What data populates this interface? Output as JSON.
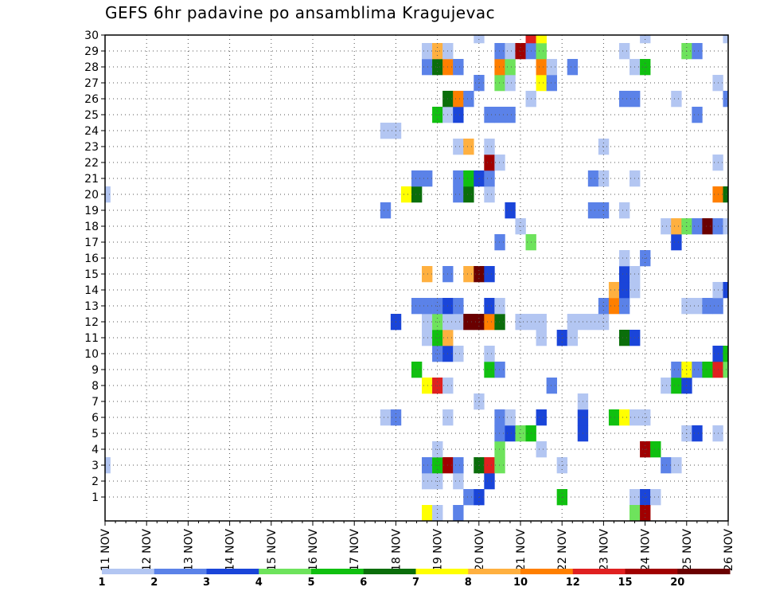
{
  "chart_data": {
    "type": "heatmap",
    "title": "GEFS 6hr padavine po ansamblima Kragujevac",
    "y_ticks": [
      1,
      2,
      3,
      4,
      5,
      6,
      7,
      8,
      9,
      10,
      11,
      12,
      13,
      14,
      15,
      16,
      17,
      18,
      19,
      20,
      21,
      22,
      23,
      24,
      25,
      26,
      27,
      28,
      29,
      30
    ],
    "x_ticks": [
      "11 NOV",
      "12 NOV",
      "13 NOV",
      "14 NOV",
      "15 NOV",
      "16 NOV",
      "17 NOV",
      "18 NOV",
      "19 NOV",
      "20 NOV",
      "21 NOV",
      "22 NOV",
      "23 NOV",
      "24 NOV",
      "25 NOV",
      "26 NOV"
    ],
    "legend": {
      "labels": [
        "1",
        "2",
        "3",
        "4",
        "5",
        "6",
        "7",
        "8",
        "10",
        "12",
        "15",
        "20"
      ],
      "colors": [
        "#b3c6f2",
        "#5b82e8",
        "#1a45d9",
        "#6ee35c",
        "#10c010",
        "#0b6e0b",
        "#ffff00",
        "#ffb040",
        "#ff7f00",
        "#e02020",
        "#a00000",
        "#6a0000"
      ]
    },
    "grid": true,
    "cells": [
      {
        "member": 1,
        "day": 19.75,
        "c": 2
      },
      {
        "member": 1,
        "day": 20.0,
        "c": 3
      },
      {
        "member": 1,
        "day": 22.0,
        "c": 5
      },
      {
        "member": 1,
        "day": 23.75,
        "c": 1
      },
      {
        "member": 1,
        "day": 24.0,
        "c": 3
      },
      {
        "member": 1,
        "day": 24.25,
        "c": 1
      },
      {
        "member": 2,
        "day": 18.75,
        "c": 1
      },
      {
        "member": 2,
        "day": 19.0,
        "c": 1
      },
      {
        "member": 2,
        "day": 19.5,
        "c": 1
      },
      {
        "member": 2,
        "day": 20.25,
        "c": 3
      },
      {
        "member": 3,
        "day": 11.0,
        "c": 1
      },
      {
        "member": 3,
        "day": 18.75,
        "c": 2
      },
      {
        "member": 3,
        "day": 19.0,
        "c": 5
      },
      {
        "member": 3,
        "day": 19.25,
        "c": 11
      },
      {
        "member": 3,
        "day": 19.5,
        "c": 2
      },
      {
        "member": 3,
        "day": 20.0,
        "c": 6
      },
      {
        "member": 3,
        "day": 20.25,
        "c": 10
      },
      {
        "member": 3,
        "day": 20.5,
        "c": 4
      },
      {
        "member": 3,
        "day": 22.0,
        "c": 1
      },
      {
        "member": 3,
        "day": 24.5,
        "c": 2
      },
      {
        "member": 3,
        "day": 24.75,
        "c": 1
      },
      {
        "member": 4,
        "day": 19.0,
        "c": 1
      },
      {
        "member": 4,
        "day": 20.5,
        "c": 4
      },
      {
        "member": 4,
        "day": 21.5,
        "c": 1
      },
      {
        "member": 4,
        "day": 24.0,
        "c": 11
      },
      {
        "member": 4,
        "day": 24.25,
        "c": 5
      },
      {
        "member": 5,
        "day": 20.5,
        "c": 2
      },
      {
        "member": 5,
        "day": 20.75,
        "c": 3
      },
      {
        "member": 5,
        "day": 21.0,
        "c": 4
      },
      {
        "member": 5,
        "day": 21.25,
        "c": 5
      },
      {
        "member": 5,
        "day": 22.5,
        "c": 3
      },
      {
        "member": 5,
        "day": 25.0,
        "c": 1
      },
      {
        "member": 5,
        "day": 25.25,
        "c": 3
      },
      {
        "member": 5,
        "day": 25.75,
        "c": 1
      },
      {
        "member": 6,
        "day": 17.75,
        "c": 1
      },
      {
        "member": 6,
        "day": 18.0,
        "c": 2
      },
      {
        "member": 6,
        "day": 19.25,
        "c": 1
      },
      {
        "member": 6,
        "day": 20.5,
        "c": 2
      },
      {
        "member": 6,
        "day": 20.75,
        "c": 1
      },
      {
        "member": 6,
        "day": 21.5,
        "c": 3
      },
      {
        "member": 6,
        "day": 22.5,
        "c": 3
      },
      {
        "member": 6,
        "day": 23.25,
        "c": 5
      },
      {
        "member": 6,
        "day": 23.5,
        "c": 7
      },
      {
        "member": 6,
        "day": 23.75,
        "c": 1
      },
      {
        "member": 6,
        "day": 24.0,
        "c": 1
      },
      {
        "member": 7,
        "day": 20.0,
        "c": 1
      },
      {
        "member": 7,
        "day": 22.5,
        "c": 1
      },
      {
        "member": 8,
        "day": 18.75,
        "c": 7
      },
      {
        "member": 8,
        "day": 19.0,
        "c": 10
      },
      {
        "member": 8,
        "day": 19.25,
        "c": 1
      },
      {
        "member": 8,
        "day": 21.75,
        "c": 2
      },
      {
        "member": 8,
        "day": 24.5,
        "c": 1
      },
      {
        "member": 8,
        "day": 24.75,
        "c": 5
      },
      {
        "member": 8,
        "day": 25.0,
        "c": 3
      },
      {
        "member": 9,
        "day": 18.5,
        "c": 5
      },
      {
        "member": 9,
        "day": 20.25,
        "c": 5
      },
      {
        "member": 9,
        "day": 20.5,
        "c": 2
      },
      {
        "member": 9,
        "day": 24.75,
        "c": 2
      },
      {
        "member": 9,
        "day": 25.0,
        "c": 7
      },
      {
        "member": 9,
        "day": 25.25,
        "c": 2
      },
      {
        "member": 9,
        "day": 25.5,
        "c": 5
      },
      {
        "member": 9,
        "day": 25.75,
        "c": 10
      },
      {
        "member": 9,
        "day": 26.0,
        "c": 4
      },
      {
        "member": 10,
        "day": 19.0,
        "c": 2
      },
      {
        "member": 10,
        "day": 19.25,
        "c": 3
      },
      {
        "member": 10,
        "day": 19.5,
        "c": 1
      },
      {
        "member": 10,
        "day": 20.25,
        "c": 1
      },
      {
        "member": 10,
        "day": 25.75,
        "c": 3
      },
      {
        "member": 10,
        "day": 26.0,
        "c": 5
      },
      {
        "member": 11,
        "day": 18.75,
        "c": 1
      },
      {
        "member": 11,
        "day": 19.0,
        "c": 5
      },
      {
        "member": 11,
        "day": 19.25,
        "c": 8
      },
      {
        "member": 11,
        "day": 21.5,
        "c": 1
      },
      {
        "member": 11,
        "day": 22.0,
        "c": 3
      },
      {
        "member": 11,
        "day": 22.25,
        "c": 1
      },
      {
        "member": 11,
        "day": 23.5,
        "c": 6
      },
      {
        "member": 11,
        "day": 23.75,
        "c": 3
      },
      {
        "member": 12,
        "day": 18.0,
        "c": 3
      },
      {
        "member": 12,
        "day": 18.75,
        "c": 1
      },
      {
        "member": 12,
        "day": 19.0,
        "c": 4
      },
      {
        "member": 12,
        "day": 19.25,
        "c": 1
      },
      {
        "member": 12,
        "day": 19.5,
        "c": 1
      },
      {
        "member": 12,
        "day": 19.75,
        "c": 12
      },
      {
        "member": 12,
        "day": 20.0,
        "c": 12
      },
      {
        "member": 12,
        "day": 20.25,
        "c": 9
      },
      {
        "member": 12,
        "day": 20.5,
        "c": 6
      },
      {
        "member": 12,
        "day": 21.0,
        "c": 1
      },
      {
        "member": 12,
        "day": 21.25,
        "c": 1
      },
      {
        "member": 12,
        "day": 21.5,
        "c": 1
      },
      {
        "member": 12,
        "day": 22.25,
        "c": 1
      },
      {
        "member": 12,
        "day": 22.5,
        "c": 1
      },
      {
        "member": 12,
        "day": 22.75,
        "c": 1
      },
      {
        "member": 12,
        "day": 23.0,
        "c": 1
      },
      {
        "member": 13,
        "day": 18.5,
        "c": 2
      },
      {
        "member": 13,
        "day": 18.75,
        "c": 2
      },
      {
        "member": 13,
        "day": 19.0,
        "c": 2
      },
      {
        "member": 13,
        "day": 19.25,
        "c": 3
      },
      {
        "member": 13,
        "day": 19.5,
        "c": 2
      },
      {
        "member": 13,
        "day": 20.25,
        "c": 3
      },
      {
        "member": 13,
        "day": 20.5,
        "c": 1
      },
      {
        "member": 13,
        "day": 23.0,
        "c": 2
      },
      {
        "member": 13,
        "day": 23.25,
        "c": 9
      },
      {
        "member": 13,
        "day": 23.5,
        "c": 2
      },
      {
        "member": 13,
        "day": 25.0,
        "c": 1
      },
      {
        "member": 13,
        "day": 25.25,
        "c": 1
      },
      {
        "member": 13,
        "day": 25.5,
        "c": 2
      },
      {
        "member": 13,
        "day": 25.75,
        "c": 2
      },
      {
        "member": 14,
        "day": 23.25,
        "c": 8
      },
      {
        "member": 14,
        "day": 23.5,
        "c": 3
      },
      {
        "member": 14,
        "day": 23.75,
        "c": 1
      },
      {
        "member": 14,
        "day": 25.75,
        "c": 1
      },
      {
        "member": 14,
        "day": 26.0,
        "c": 3
      },
      {
        "member": 15,
        "day": 18.75,
        "c": 8
      },
      {
        "member": 15,
        "day": 19.25,
        "c": 2
      },
      {
        "member": 15,
        "day": 19.75,
        "c": 8
      },
      {
        "member": 15,
        "day": 20.0,
        "c": 12
      },
      {
        "member": 15,
        "day": 20.25,
        "c": 3
      },
      {
        "member": 15,
        "day": 23.5,
        "c": 3
      },
      {
        "member": 15,
        "day": 23.75,
        "c": 1
      },
      {
        "member": 16,
        "day": 23.5,
        "c": 1
      },
      {
        "member": 16,
        "day": 24.0,
        "c": 2
      },
      {
        "member": 17,
        "day": 20.5,
        "c": 2
      },
      {
        "member": 17,
        "day": 21.25,
        "c": 4
      },
      {
        "member": 17,
        "day": 24.75,
        "c": 3
      },
      {
        "member": 18,
        "day": 21.0,
        "c": 1
      },
      {
        "member": 18,
        "day": 24.5,
        "c": 1
      },
      {
        "member": 18,
        "day": 24.75,
        "c": 8
      },
      {
        "member": 18,
        "day": 25.0,
        "c": 4
      },
      {
        "member": 18,
        "day": 25.25,
        "c": 2
      },
      {
        "member": 18,
        "day": 25.5,
        "c": 12
      },
      {
        "member": 18,
        "day": 25.75,
        "c": 2
      },
      {
        "member": 18,
        "day": 26.0,
        "c": 1
      },
      {
        "member": 19,
        "day": 17.75,
        "c": 2
      },
      {
        "member": 19,
        "day": 20.75,
        "c": 3
      },
      {
        "member": 19,
        "day": 22.75,
        "c": 2
      },
      {
        "member": 19,
        "day": 23.0,
        "c": 2
      },
      {
        "member": 19,
        "day": 23.5,
        "c": 1
      },
      {
        "member": 20,
        "day": 11.0,
        "c": 1
      },
      {
        "member": 20,
        "day": 18.25,
        "c": 7
      },
      {
        "member": 20,
        "day": 18.5,
        "c": 6
      },
      {
        "member": 20,
        "day": 19.5,
        "c": 2
      },
      {
        "member": 20,
        "day": 19.75,
        "c": 6
      },
      {
        "member": 20,
        "day": 20.25,
        "c": 1
      },
      {
        "member": 20,
        "day": 25.75,
        "c": 9
      },
      {
        "member": 20,
        "day": 26.0,
        "c": 6
      },
      {
        "member": 21,
        "day": 18.5,
        "c": 2
      },
      {
        "member": 21,
        "day": 18.75,
        "c": 2
      },
      {
        "member": 21,
        "day": 19.5,
        "c": 2
      },
      {
        "member": 21,
        "day": 19.75,
        "c": 5
      },
      {
        "member": 21,
        "day": 20.0,
        "c": 3
      },
      {
        "member": 21,
        "day": 20.25,
        "c": 2
      },
      {
        "member": 21,
        "day": 22.75,
        "c": 2
      },
      {
        "member": 21,
        "day": 23.0,
        "c": 1
      },
      {
        "member": 21,
        "day": 23.75,
        "c": 1
      },
      {
        "member": 22,
        "day": 20.25,
        "c": 11
      },
      {
        "member": 22,
        "day": 20.5,
        "c": 1
      },
      {
        "member": 22,
        "day": 25.75,
        "c": 1
      },
      {
        "member": 23,
        "day": 19.5,
        "c": 1
      },
      {
        "member": 23,
        "day": 19.75,
        "c": 8
      },
      {
        "member": 23,
        "day": 20.25,
        "c": 1
      },
      {
        "member": 23,
        "day": 23.0,
        "c": 1
      },
      {
        "member": 24,
        "day": 17.75,
        "c": 1
      },
      {
        "member": 24,
        "day": 18.0,
        "c": 1
      },
      {
        "member": 25,
        "day": 19.0,
        "c": 5
      },
      {
        "member": 25,
        "day": 19.25,
        "c": 1
      },
      {
        "member": 25,
        "day": 19.5,
        "c": 3
      },
      {
        "member": 25,
        "day": 20.25,
        "c": 2
      },
      {
        "member": 25,
        "day": 20.5,
        "c": 2
      },
      {
        "member": 25,
        "day": 20.75,
        "c": 2
      },
      {
        "member": 25,
        "day": 25.25,
        "c": 2
      },
      {
        "member": 26,
        "day": 19.25,
        "c": 6
      },
      {
        "member": 26,
        "day": 19.5,
        "c": 9
      },
      {
        "member": 26,
        "day": 19.75,
        "c": 2
      },
      {
        "member": 26,
        "day": 21.25,
        "c": 1
      },
      {
        "member": 26,
        "day": 23.5,
        "c": 2
      },
      {
        "member": 26,
        "day": 23.75,
        "c": 2
      },
      {
        "member": 26,
        "day": 24.75,
        "c": 1
      },
      {
        "member": 26,
        "day": 26.0,
        "c": 2
      },
      {
        "member": 27,
        "day": 20.0,
        "c": 2
      },
      {
        "member": 27,
        "day": 20.5,
        "c": 4
      },
      {
        "member": 27,
        "day": 20.75,
        "c": 1
      },
      {
        "member": 27,
        "day": 21.5,
        "c": 7
      },
      {
        "member": 27,
        "day": 21.75,
        "c": 2
      },
      {
        "member": 27,
        "day": 25.75,
        "c": 1
      },
      {
        "member": 28,
        "day": 18.75,
        "c": 2
      },
      {
        "member": 28,
        "day": 19.0,
        "c": 6
      },
      {
        "member": 28,
        "day": 19.25,
        "c": 9
      },
      {
        "member": 28,
        "day": 19.5,
        "c": 2
      },
      {
        "member": 28,
        "day": 20.5,
        "c": 9
      },
      {
        "member": 28,
        "day": 20.75,
        "c": 4
      },
      {
        "member": 28,
        "day": 21.5,
        "c": 9
      },
      {
        "member": 28,
        "day": 21.75,
        "c": 1
      },
      {
        "member": 28,
        "day": 22.25,
        "c": 2
      },
      {
        "member": 28,
        "day": 23.75,
        "c": 1
      },
      {
        "member": 28,
        "day": 24.0,
        "c": 5
      },
      {
        "member": 29,
        "day": 18.75,
        "c": 1
      },
      {
        "member": 29,
        "day": 19.0,
        "c": 8
      },
      {
        "member": 29,
        "day": 19.25,
        "c": 1
      },
      {
        "member": 29,
        "day": 20.5,
        "c": 2
      },
      {
        "member": 29,
        "day": 20.75,
        "c": 1
      },
      {
        "member": 29,
        "day": 21.0,
        "c": 11
      },
      {
        "member": 29,
        "day": 21.25,
        "c": 2
      },
      {
        "member": 29,
        "day": 21.5,
        "c": 4
      },
      {
        "member": 29,
        "day": 23.5,
        "c": 1
      },
      {
        "member": 29,
        "day": 25.0,
        "c": 4
      },
      {
        "member": 29,
        "day": 25.25,
        "c": 2
      },
      {
        "member": 30,
        "day": 20.0,
        "c": 1
      },
      {
        "member": 30,
        "day": 21.25,
        "c": 10
      },
      {
        "member": 30,
        "day": 21.5,
        "c": 7
      },
      {
        "member": 30,
        "day": 24.0,
        "c": 1
      },
      {
        "member": 30,
        "day": 26.0,
        "c": 1
      },
      {
        "member": 0,
        "day": 18.75,
        "c": 7
      },
      {
        "member": 0,
        "day": 19.0,
        "c": 1
      },
      {
        "member": 0,
        "day": 19.5,
        "c": 2
      },
      {
        "member": 0,
        "day": 23.75,
        "c": 4
      },
      {
        "member": 0,
        "day": 24.0,
        "c": 11
      }
    ]
  }
}
